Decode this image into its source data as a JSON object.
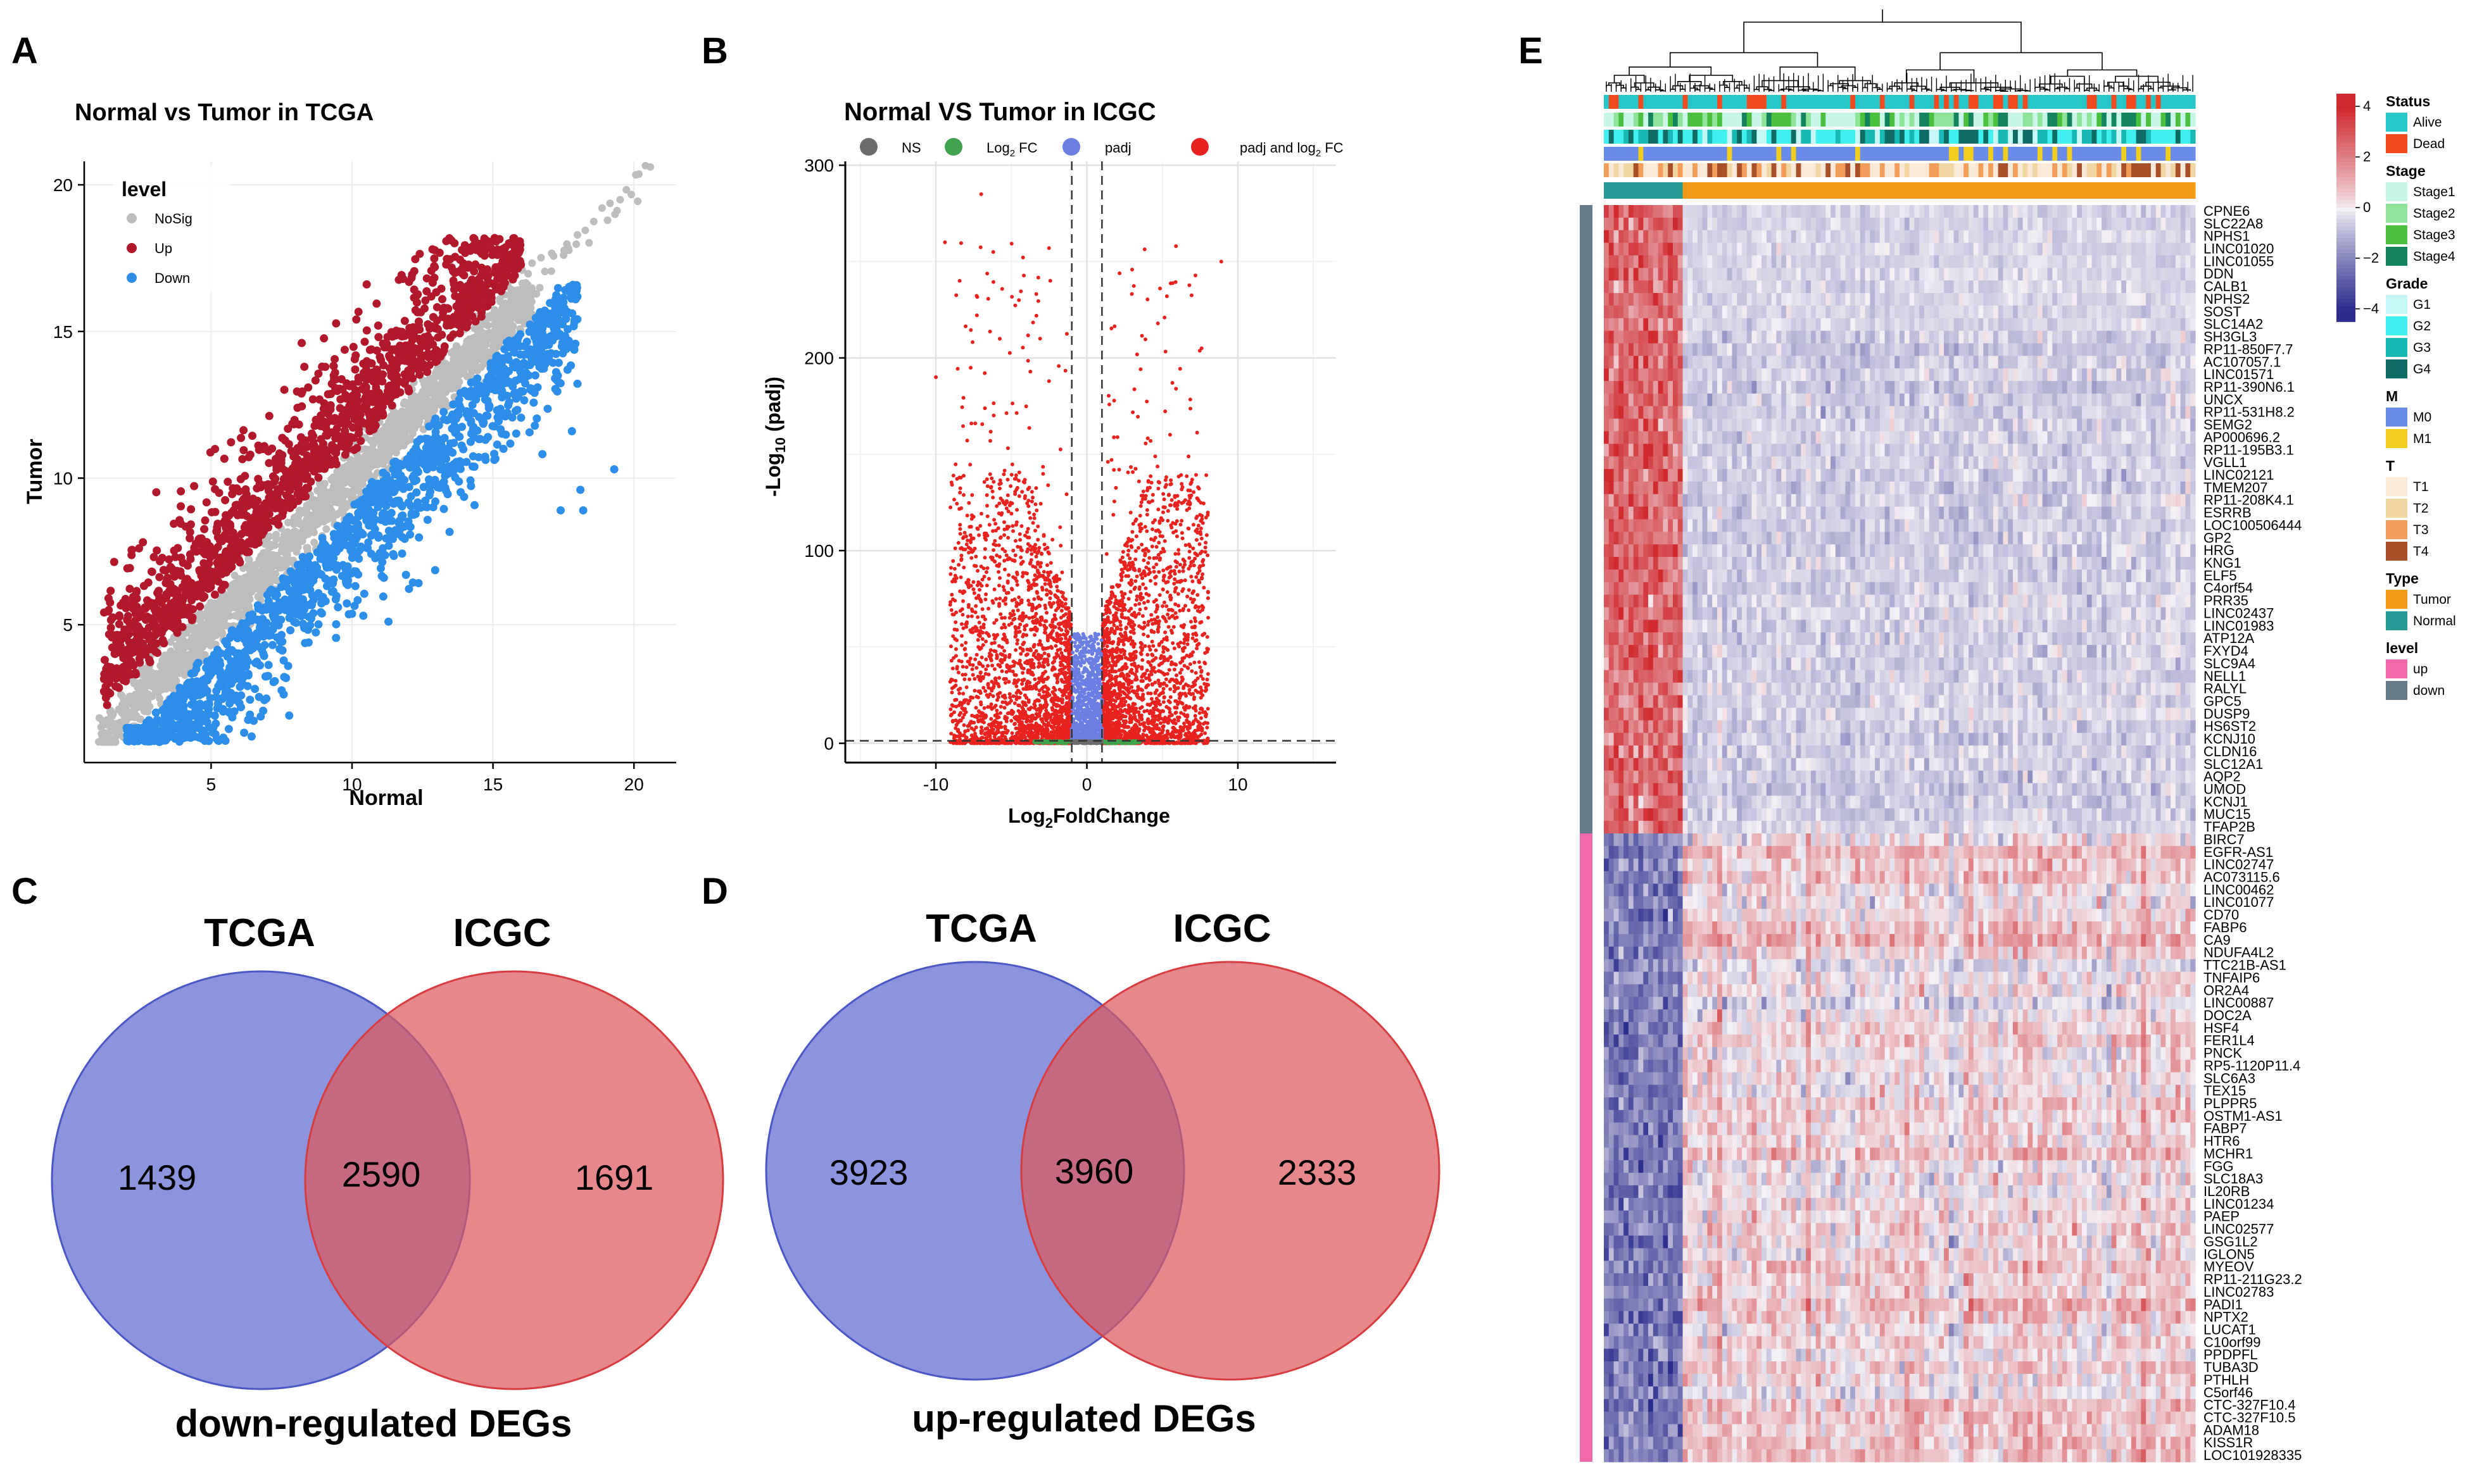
{
  "figure": {
    "panel_labels": [
      "A",
      "B",
      "C",
      "D",
      "E"
    ]
  },
  "chart_data": [
    {
      "id": "A",
      "type": "scatter",
      "title": "Normal vs Tumor in TCGA",
      "xlabel": "Normal",
      "ylabel": "Tumor",
      "xlim": [
        0.5,
        21.5
      ],
      "ylim": [
        0.3,
        20.8
      ],
      "xticks": [
        5,
        10,
        15,
        20
      ],
      "yticks": [
        5,
        10,
        15,
        20
      ],
      "grid": true,
      "legend": {
        "title": "level",
        "position": "top-left",
        "entries": [
          {
            "label": "NoSig",
            "color": "#bdbdbd"
          },
          {
            "label": "Up",
            "color": "#b2182b"
          },
          {
            "label": "Down",
            "color": "#2c8ee8"
          }
        ]
      },
      "series": [
        {
          "name": "NoSig",
          "color": "#bdbdbd",
          "description": "dense diagonal band y ≈ x from about 1 to 16, extending with sparse points to ~20.6"
        },
        {
          "name": "Up",
          "color": "#b2182b",
          "description": "points above the diagonal; tumor higher than normal, up to ~18"
        },
        {
          "name": "Down",
          "color": "#2c8ee8",
          "description": "points below the diagonal; normal higher than tumor, reaching x ~19"
        }
      ]
    },
    {
      "id": "B",
      "type": "scatter",
      "title": "Normal VS Tumor in ICGC",
      "xlabel": "Log2FoldChange",
      "xlabel_main": "Log",
      "xlabel_sub": "2",
      "xlabel_rest": "FoldChange",
      "ylabel": "-Log10 (padj)",
      "ylabel_main": "-Log",
      "ylabel_sub": "10",
      "ylabel_rest": " (padj)",
      "xlim": [
        -16,
        16.5
      ],
      "ylim": [
        -10,
        302
      ],
      "xticks": [
        -10,
        0,
        10
      ],
      "yticks": [
        0,
        100,
        200,
        300
      ],
      "grid": true,
      "thresholds": {
        "log2fc": [
          -1,
          1
        ],
        "padj_line": 1.3
      },
      "legend": {
        "position": "top",
        "entries": [
          {
            "label": "NS",
            "color": "#6b6b6b"
          },
          {
            "label": "Log2 FC",
            "label_main": "Log",
            "label_sub": "2",
            "label_rest": " FC",
            "color": "#3fa34d"
          },
          {
            "label": "padj",
            "color": "#6b7fe3"
          },
          {
            "label": "padj and log2 FC",
            "label_main": "padj and log",
            "label_sub": "2",
            "label_rest": " FC",
            "color": "#e8231f"
          }
        ]
      },
      "series": [
        {
          "name": "padj and log2 FC",
          "color": "#e8231f",
          "description": "significant genes |log2FC|>1, dense cloud 0-60, sparse up to ~285 (x≈-7)"
        },
        {
          "name": "padj",
          "color": "#6b7fe3",
          "description": "significant padj only, |log2FC|<1"
        },
        {
          "name": "Log2 FC",
          "color": "#3fa34d",
          "description": "fold change only, near y=0"
        },
        {
          "name": "NS",
          "color": "#6b6b6b",
          "description": "not significant"
        }
      ]
    },
    {
      "id": "C",
      "type": "venn",
      "title": "down-regulated DEGs",
      "sets": [
        {
          "name": "TCGA",
          "color": "#6470d0",
          "only": 1439
        },
        {
          "name": "ICGC",
          "color": "#dd5a5e",
          "only": 1691
        }
      ],
      "intersection": 2590
    },
    {
      "id": "D",
      "type": "venn",
      "title": "up-regulated DEGs",
      "sets": [
        {
          "name": "TCGA",
          "color": "#6470d0",
          "only": 3923
        },
        {
          "name": "ICGC",
          "color": "#dd5a5e",
          "only": 2333
        }
      ],
      "intersection": 3960
    },
    {
      "id": "E",
      "type": "heatmap",
      "color_scale": {
        "min": -4,
        "max": 4,
        "ticks": [
          4,
          2,
          0,
          -2,
          -4
        ],
        "low": "#2b2c8c",
        "mid": "#f4f1f6",
        "high": "#cf2a2e"
      },
      "column_split": {
        "normal_fraction": 0.13,
        "normal_label": "Normal",
        "tumor_label": "Tumor"
      },
      "annotation_tracks": [
        "Status",
        "Stage",
        "Grade",
        "M",
        "T",
        "Type"
      ],
      "legends": [
        {
          "title": "Status",
          "entries": [
            {
              "label": "Alive",
              "color": "#27c7c9"
            },
            {
              "label": "Dead",
              "color": "#f04a1e"
            }
          ]
        },
        {
          "title": "Stage",
          "entries": [
            {
              "label": "Stage1",
              "color": "#c9f7e7"
            },
            {
              "label": "Stage2",
              "color": "#8fe39a"
            },
            {
              "label": "Stage3",
              "color": "#4bbf3e"
            },
            {
              "label": "Stage4",
              "color": "#14845d"
            }
          ]
        },
        {
          "title": "Grade",
          "entries": [
            {
              "label": "G1",
              "color": "#c6f7f6"
            },
            {
              "label": "G2",
              "color": "#3ff0ee"
            },
            {
              "label": "G3",
              "color": "#18b8b4"
            },
            {
              "label": "G4",
              "color": "#0e6c64"
            }
          ]
        },
        {
          "title": "M",
          "entries": [
            {
              "label": "M0",
              "color": "#6a8be8"
            },
            {
              "label": "M1",
              "color": "#f1cd1f"
            }
          ]
        },
        {
          "title": "T",
          "entries": [
            {
              "label": "T1",
              "color": "#fbe9d8"
            },
            {
              "label": "T2",
              "color": "#f0d6a3"
            },
            {
              "label": "T3",
              "color": "#f29e5a"
            },
            {
              "label": "T4",
              "color": "#a8502a"
            }
          ]
        },
        {
          "title": "Type",
          "entries": [
            {
              "label": "Tumor",
              "color": "#f59a17"
            },
            {
              "label": "Normal",
              "color": "#289a95"
            }
          ]
        },
        {
          "title": "level",
          "entries": [
            {
              "label": "up",
              "color": "#f06aa9"
            },
            {
              "label": "down",
              "color": "#667b8a"
            }
          ]
        }
      ],
      "row_groups": [
        {
          "level": "down",
          "genes": [
            "CPNE6",
            "SLC22A8",
            "NPHS1",
            "LINC01020",
            "LINC01055",
            "DDN",
            "CALB1",
            "NPHS2",
            "SOST",
            "SLC14A2",
            "SH3GL3",
            "RP11-850F7.7",
            "AC107057.1",
            "LINC01571",
            "RP11-390N6.1",
            "UNCX",
            "RP11-531H8.2",
            "SEMG2",
            "AP000696.2",
            "RP11-195B3.1",
            "VGLL1",
            "LINC02121",
            "TMEM207",
            "RP11-208K4.1",
            "ESRRB",
            "LOC100506444",
            "GP2",
            "HRG",
            "KNG1",
            "ELF5",
            "C4orf54",
            "PRR35",
            "LINC02437",
            "LINC01983",
            "ATP12A",
            "FXYD4",
            "SLC9A4",
            "NELL1",
            "RALYL",
            "GPC5",
            "DUSP9",
            "HS6ST2",
            "KCNJ10",
            "CLDN16",
            "SLC12A1",
            "AQP2",
            "UMOD",
            "KCNJ1",
            "MUC15",
            "TFAP2B"
          ]
        },
        {
          "level": "up",
          "genes": [
            "BIRC7",
            "EGFR-AS1",
            "LINC02747",
            "AC073115.6",
            "LINC00462",
            "LINC01077",
            "CD70",
            "FABP6",
            "CA9",
            "NDUFA4L2",
            "TTC21B-AS1",
            "TNFAIP6",
            "OR2A4",
            "LINC00887",
            "DOC2A",
            "HSF4",
            "FER1L4",
            "PNCK",
            "RP5-1120P11.4",
            "SLC6A3",
            "TEX15",
            "PLPPR5",
            "OSTM1-AS1",
            "FABP7",
            "HTR6",
            "MCHR1",
            "FGG",
            "SLC18A3",
            "IL20RB",
            "LINC01234",
            "PAEP",
            "LINC02577",
            "GSG1L2",
            "IGLON5",
            "MYEOV",
            "RP11-211G23.2",
            "LINC02783",
            "PADI1",
            "NPTX2",
            "LUCAT1",
            "C10orf99",
            "PPDPFL",
            "TUBA3D",
            "PTHLH",
            "C5orf46",
            "CTC-327F10.4",
            "CTC-327F10.5",
            "ADAM18",
            "KISS1R",
            "LOC101928335"
          ]
        }
      ]
    }
  ]
}
